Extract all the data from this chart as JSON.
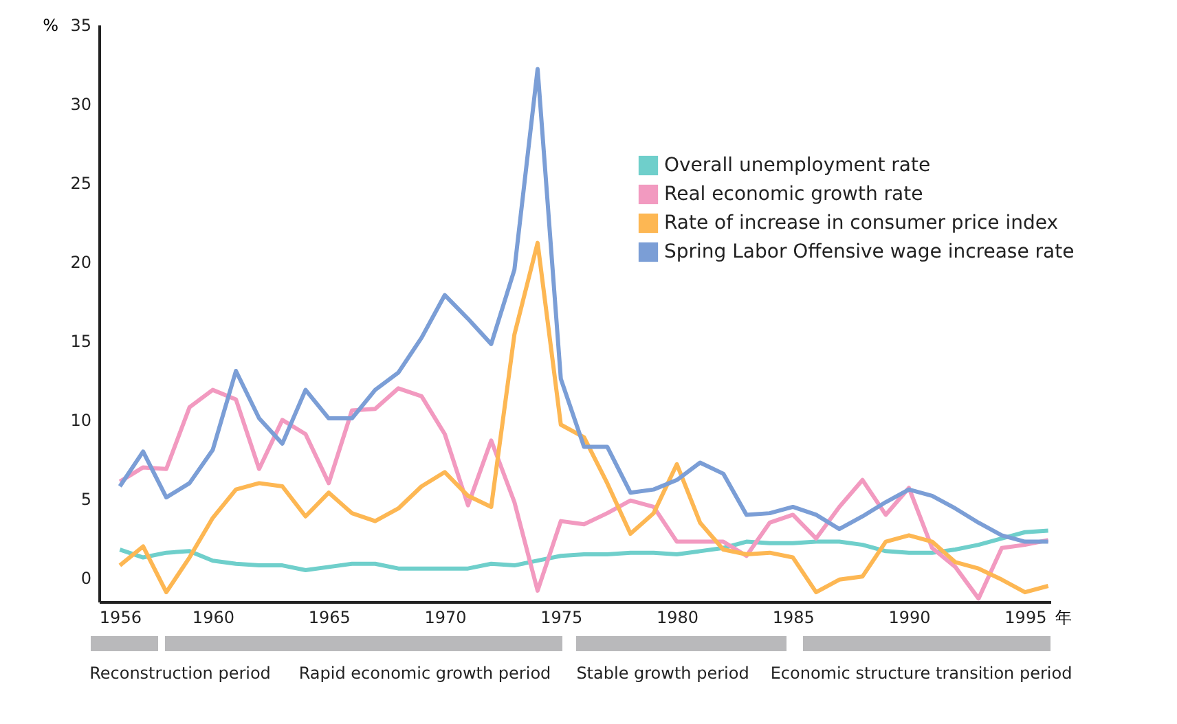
{
  "chart_data": {
    "type": "line",
    "xlabel": "年",
    "ylabel": "%",
    "x": [
      1956,
      1957,
      1958,
      1959,
      1960,
      1961,
      1962,
      1963,
      1964,
      1965,
      1966,
      1967,
      1968,
      1969,
      1970,
      1971,
      1972,
      1973,
      1974,
      1975,
      1976,
      1977,
      1978,
      1979,
      1980,
      1981,
      1982,
      1983,
      1984,
      1985,
      1986,
      1987,
      1988,
      1989,
      1990,
      1991,
      1992,
      1993,
      1994,
      1995,
      1996
    ],
    "series": [
      {
        "name": "Overall unemployment rate",
        "color": "#6fcfcb",
        "values": [
          1.8,
          1.3,
          1.6,
          1.7,
          1.1,
          0.9,
          0.8,
          0.8,
          0.5,
          0.7,
          0.9,
          0.9,
          0.6,
          0.6,
          0.6,
          0.6,
          0.9,
          0.8,
          1.1,
          1.4,
          1.5,
          1.5,
          1.6,
          1.6,
          1.5,
          1.7,
          1.9,
          2.3,
          2.2,
          2.2,
          2.3,
          2.3,
          2.1,
          1.7,
          1.6,
          1.6,
          1.8,
          2.1,
          2.5,
          2.9,
          3.0
        ]
      },
      {
        "name": "Real economic growth rate",
        "color": "#f29ac0",
        "values": [
          6.1,
          7.0,
          6.9,
          10.8,
          11.9,
          11.3,
          6.9,
          10.0,
          9.1,
          6.0,
          10.6,
          10.7,
          12.0,
          11.5,
          9.1,
          4.6,
          8.7,
          4.8,
          -0.8,
          3.6,
          3.4,
          4.1,
          4.9,
          4.5,
          2.3,
          2.3,
          2.3,
          1.4,
          3.5,
          4.0,
          2.5,
          4.5,
          6.2,
          4.0,
          5.7,
          1.9,
          0.7,
          -1.3,
          1.9,
          2.1,
          2.4
        ]
      },
      {
        "name": "Rate of increase in consumer price index",
        "color": "#fdb753",
        "values": [
          0.8,
          2.0,
          -0.9,
          1.3,
          3.8,
          5.6,
          6.0,
          5.8,
          3.9,
          5.4,
          4.1,
          3.6,
          4.4,
          5.8,
          6.7,
          5.2,
          4.5,
          15.4,
          21.2,
          9.7,
          8.9,
          6.0,
          2.8,
          4.1,
          7.2,
          3.5,
          1.8,
          1.5,
          1.6,
          1.3,
          -0.9,
          -0.1,
          0.1,
          2.3,
          2.7,
          2.3,
          1.0,
          0.6,
          -0.1,
          -0.9,
          -0.5
        ]
      },
      {
        "name": "Spring Labor Offensive wage increase rate",
        "color": "#7b9ed6",
        "values": [
          5.8,
          8.0,
          5.1,
          6.0,
          8.1,
          13.1,
          10.1,
          8.5,
          11.9,
          10.1,
          10.1,
          11.9,
          13.0,
          15.2,
          17.9,
          16.4,
          14.8,
          19.5,
          32.2,
          12.6,
          8.3,
          8.3,
          5.4,
          5.6,
          6.2,
          7.3,
          6.6,
          4.0,
          4.1,
          4.5,
          4.0,
          3.1,
          3.9,
          4.8,
          5.6,
          5.2,
          4.4,
          3.5,
          2.7,
          2.3,
          2.3
        ]
      }
    ],
    "xlim": [
      1955.1,
      1996.1
    ],
    "ylim": [
      -1.5,
      35
    ],
    "xticks": [
      1956,
      1960,
      1965,
      1970,
      1975,
      1980,
      1985,
      1990,
      1995
    ],
    "yticks": [
      0,
      5,
      10,
      15,
      20,
      25,
      30,
      35
    ],
    "legend": "top right",
    "annotations": [
      "Reconstruction period",
      "Rapid economic growth period",
      "Stable growth period",
      "Economic structure transition period"
    ]
  }
}
